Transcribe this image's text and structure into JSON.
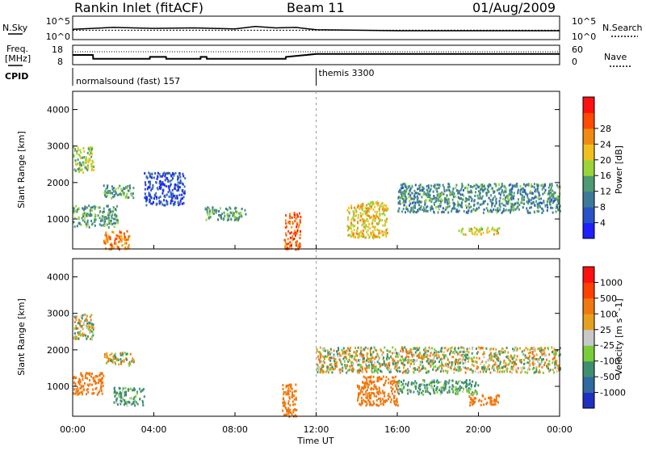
{
  "header": {
    "title": "Rankin Inlet (fitACF)",
    "beam": "Beam 11",
    "date": "01/Aug/2009"
  },
  "noise_panel": {
    "left_label": "N.Sky",
    "left_ticks": [
      "10^5",
      "10^0"
    ],
    "right_label": "N.Search",
    "right_ticks": [
      "10^5",
      "10^0"
    ]
  },
  "freq_panel": {
    "left_label_line1": "Freq.",
    "left_label_line2": "[MHz]",
    "left_ticks": [
      "18",
      "8"
    ],
    "right_label": "Nave",
    "right_ticks": [
      "60",
      "0"
    ]
  },
  "cpid": {
    "label": "CPID",
    "modes": [
      {
        "name": "normalsound (fast) 157",
        "start_hour": 0
      },
      {
        "name": "themis 3300",
        "start_hour": 12
      }
    ]
  },
  "power_panel": {
    "ylabel": "Slant Range [km]",
    "yticks": [
      "1000",
      "2000",
      "3000",
      "4000"
    ],
    "colorbar_label": "Power [dB]",
    "colorbar_ticks": [
      "4",
      "8",
      "12",
      "16",
      "20",
      "24",
      "28"
    ],
    "colors": [
      "#1f1fff",
      "#2a52c8",
      "#3d7a9a",
      "#4d9a73",
      "#9bd43a",
      "#f0c020",
      "#f08a10",
      "#ff4a00",
      "#ff1010"
    ]
  },
  "velocity_panel": {
    "ylabel": "Slant Range [km]",
    "yticks": [
      "1000",
      "2000",
      "3000",
      "4000"
    ],
    "colorbar_label": "Velocity [m s^-1]",
    "colorbar_ticks": [
      "1000",
      "500",
      "100",
      "25",
      "-25",
      "-100",
      "-500",
      "-1000"
    ],
    "colors": [
      "#2030c0",
      "#2f6aa0",
      "#3e8f70",
      "#7acd3a",
      "#c8c8c8",
      "#e6a020",
      "#f07810",
      "#ff4000",
      "#ff1010"
    ]
  },
  "x_axis": {
    "ticks": [
      "00:00",
      "04:00",
      "08:00",
      "12:00",
      "16:00",
      "20:00",
      "00:00"
    ],
    "label": "Time UT"
  },
  "chart_data": [
    {
      "type": "line",
      "name": "noise",
      "x": [
        0,
        2,
        4,
        6,
        8,
        9,
        10,
        11,
        12,
        14,
        16,
        18,
        20,
        22,
        24
      ],
      "series": [
        {
          "values": [
            2.2,
            2.6,
            2.4,
            2.5,
            2.3,
            2.8,
            2.5,
            2.6,
            2.1,
            2.0,
            1.9,
            1.9,
            1.9,
            1.9,
            1.9
          ]
        }
      ],
      "xlim": [
        0,
        24
      ]
    },
    {
      "type": "line",
      "name": "frequency",
      "x": [
        0,
        1,
        1.01,
        3.8,
        3.81,
        4.6,
        4.61,
        6.3,
        6.31,
        6.6,
        6.61,
        10.5,
        10.51,
        12,
        24
      ],
      "series": [
        {
          "values": [
            13,
            13,
            11,
            11,
            12,
            12,
            11,
            11,
            12,
            12,
            11,
            11,
            12,
            13.5,
            13.5
          ]
        }
      ],
      "ylim": [
        8,
        18
      ],
      "xlim": [
        0,
        24
      ]
    },
    {
      "type": "heatmap",
      "name": "power",
      "xlim": [
        0,
        24
      ],
      "ylim": [
        180,
        4500
      ],
      "xlabel": "Time UT",
      "ylabel": "Slant Range [km]",
      "regions": [
        {
          "t0": 0,
          "t1": 2.2,
          "r0": 800,
          "r1": 1400,
          "value": 14
        },
        {
          "t0": 0,
          "t1": 1,
          "r0": 2300,
          "r1": 3000,
          "value": 18
        },
        {
          "t0": 1.5,
          "t1": 3,
          "r0": 1600,
          "r1": 1950,
          "value": 14
        },
        {
          "t0": 1.5,
          "t1": 2.8,
          "r0": 180,
          "r1": 700,
          "value": 27
        },
        {
          "t0": 3.5,
          "t1": 5.5,
          "r0": 1400,
          "r1": 2300,
          "value": 6
        },
        {
          "t0": 6.5,
          "t1": 8.5,
          "r0": 1000,
          "r1": 1350,
          "value": 14
        },
        {
          "t0": 10.4,
          "t1": 11.2,
          "r0": 180,
          "r1": 1200,
          "value": 28
        },
        {
          "t0": 13.5,
          "t1": 15.5,
          "r0": 500,
          "r1": 1500,
          "value": 22
        },
        {
          "t0": 16,
          "t1": 24,
          "r0": 1200,
          "r1": 2000,
          "value": 12
        },
        {
          "t0": 19,
          "t1": 21,
          "r0": 600,
          "r1": 800,
          "value": 20
        }
      ]
    },
    {
      "type": "heatmap",
      "name": "velocity",
      "xlim": [
        0,
        24
      ],
      "ylim": [
        180,
        4500
      ],
      "xlabel": "Time UT",
      "ylabel": "Slant Range [km]",
      "regions": [
        {
          "t0": 0,
          "t1": 1.5,
          "r0": 800,
          "r1": 1400,
          "value": -300
        },
        {
          "t0": 0,
          "t1": 1,
          "r0": 2300,
          "r1": 3000,
          "value": 0
        },
        {
          "t0": 1.5,
          "t1": 3,
          "r0": 1600,
          "r1": 1950,
          "value": 0
        },
        {
          "t0": 2,
          "t1": 3.5,
          "r0": 500,
          "r1": 1000,
          "value": 200
        },
        {
          "t0": 10.3,
          "t1": 11,
          "r0": 180,
          "r1": 1100,
          "value": -300
        },
        {
          "t0": 12,
          "t1": 24,
          "r0": 1400,
          "r1": 2100,
          "value": 0
        },
        {
          "t0": 14,
          "t1": 16,
          "r0": 500,
          "r1": 1300,
          "value": -300
        },
        {
          "t0": 16,
          "t1": 20,
          "r0": 800,
          "r1": 1200,
          "value": 200
        },
        {
          "t0": 19.5,
          "t1": 21,
          "r0": 500,
          "r1": 800,
          "value": -300
        }
      ]
    }
  ]
}
